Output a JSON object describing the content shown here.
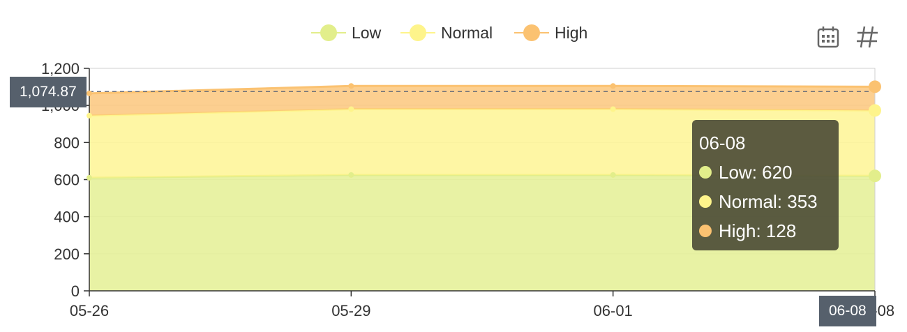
{
  "chart_data": {
    "type": "area",
    "stacked": true,
    "categories": [
      "05-26",
      "05-29",
      "06-01",
      "06-08"
    ],
    "series": [
      {
        "name": "Low",
        "values": [
          610,
          625,
          625,
          620
        ],
        "color": "#e2ee8b"
      },
      {
        "name": "Normal",
        "values": [
          335,
          355,
          355,
          353
        ],
        "color": "#fef48b"
      },
      {
        "name": "High",
        "values": [
          120,
          125,
          125,
          128
        ],
        "color": "#fbc271"
      }
    ],
    "ylim": [
      0,
      1200
    ],
    "yticks": [
      "0",
      "200",
      "400",
      "600",
      "800",
      "1,000",
      "1,200"
    ],
    "legend_position": "top-center",
    "grid": true
  },
  "tooltip": {
    "title": "06-08",
    "rows": [
      {
        "label": "Low: 620",
        "color": "#e2ee8b"
      },
      {
        "label": "Normal: 353",
        "color": "#fef48b"
      },
      {
        "label": "High: 128",
        "color": "#fbc271"
      }
    ]
  },
  "axis_pointer": {
    "y_value": 1074.87,
    "y_label": "1,074.87",
    "x_label": "06-08"
  },
  "toolbox": [
    {
      "icon": "calendar-icon"
    },
    {
      "icon": "hash-icon"
    }
  ]
}
